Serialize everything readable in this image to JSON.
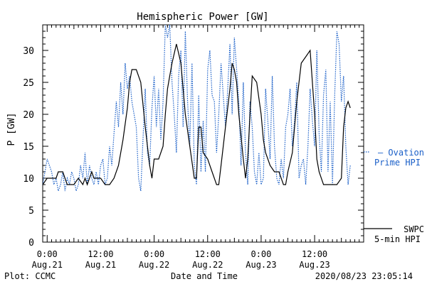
{
  "chart_data": {
    "type": "line",
    "title": "Hemispheric Power [GW]",
    "ylabel": "P [GW]",
    "xlabel": "Date and Time",
    "footer_left": "Plot: CCMC",
    "footer_right": "2020/08/23 23:05:14",
    "ylim": [
      0,
      34
    ],
    "xlim": [
      -1,
      71
    ],
    "yticks": [
      0,
      5,
      10,
      15,
      20,
      25,
      30
    ],
    "xticks": [
      {
        "x": 0,
        "label1": "0:00",
        "label2": "Aug.21"
      },
      {
        "x": 12,
        "label1": "12:00",
        "label2": "Aug.21"
      },
      {
        "x": 24,
        "label1": "0:00",
        "label2": "Aug.22"
      },
      {
        "x": 36,
        "label1": "12:00",
        "label2": "Aug.22"
      },
      {
        "x": 48,
        "label1": "0:00",
        "label2": "Aug.23"
      },
      {
        "x": 60,
        "label1": "12:00",
        "label2": "Aug.23"
      }
    ],
    "grid": false,
    "legend": [
      {
        "name": "— Ovation",
        "name2": "Prime HPI",
        "color": "#1a5fc8",
        "style": "dotted",
        "y": 14
      },
      {
        "name": "SWPC",
        "name2": "5-min HPI",
        "color": "#000000",
        "style": "solid",
        "y": 2
      }
    ],
    "series": [
      {
        "name": "SWPC 5-min HPI",
        "color": "#000000",
        "style": "solid",
        "x": [
          -1,
          0,
          1,
          2,
          2.5,
          3,
          3.5,
          4,
          4.5,
          5,
          6,
          7,
          8,
          8.5,
          9,
          10,
          10.5,
          11,
          11.5,
          12,
          13,
          14,
          15,
          16,
          17,
          18,
          18.5,
          19,
          20,
          21,
          22,
          23,
          23.5,
          24,
          25,
          26,
          26.5,
          27,
          27.5,
          28,
          29,
          30,
          31,
          32,
          33,
          33.5,
          34,
          34.5,
          35,
          36,
          37,
          38,
          38.5,
          39,
          40,
          41,
          41.5,
          42,
          42.5,
          43,
          44,
          44.5,
          45,
          45.5,
          46,
          47,
          48,
          48.5,
          49,
          50,
          51,
          52,
          53,
          53.5,
          54,
          55,
          56,
          57,
          58,
          59,
          60,
          60.5,
          61,
          62,
          63,
          64,
          65,
          66,
          66.5,
          67,
          67.5,
          68
        ],
        "y": [
          9,
          10,
          10,
          10,
          11,
          11,
          11,
          10,
          9,
          9,
          9,
          10,
          9,
          10,
          9,
          11,
          10,
          10,
          10,
          10,
          9,
          9,
          10,
          12,
          16,
          21,
          25,
          27,
          27,
          25,
          18,
          12,
          10,
          13,
          13,
          15,
          20,
          24,
          26,
          28,
          31,
          28,
          20,
          15,
          10,
          10,
          18,
          18,
          14,
          13,
          11,
          9,
          9,
          12,
          18,
          24,
          28,
          27,
          25,
          20,
          13,
          10,
          13,
          20,
          26,
          25,
          20,
          16,
          14,
          12,
          11,
          11,
          9,
          9,
          11,
          14,
          22,
          28,
          29,
          30,
          20,
          13,
          11,
          9,
          9,
          9,
          9,
          10,
          18,
          21,
          22,
          21
        ]
      },
      {
        "name": "Ovation Prime HPI",
        "color": "#1a5fc8",
        "style": "dotted",
        "x": [
          -1,
          0,
          1,
          1.5,
          2,
          2.5,
          3,
          3.5,
          4,
          4.5,
          5,
          5.5,
          6,
          6.5,
          7,
          7.5,
          8,
          8.5,
          9,
          9.5,
          10,
          10.5,
          11,
          11.5,
          12,
          12.5,
          13,
          13.5,
          14,
          14.5,
          15,
          15.5,
          16,
          16.5,
          17,
          17.5,
          18,
          18.5,
          19,
          19.5,
          20,
          20.5,
          21,
          21.5,
          22,
          22.5,
          23,
          23.5,
          24,
          24.5,
          25,
          25.5,
          26,
          26.5,
          27,
          27.5,
          28,
          28.5,
          29,
          29.5,
          30,
          30.5,
          31,
          31.5,
          32,
          32.5,
          33,
          33.5,
          34,
          34.5,
          35,
          35.5,
          36,
          36.5,
          37,
          37.5,
          38,
          38.5,
          39,
          39.5,
          40,
          40.5,
          41,
          41.5,
          42,
          42.5,
          43,
          43.5,
          44,
          44.5,
          45,
          45.5,
          46,
          46.5,
          47,
          47.5,
          48,
          48.5,
          49,
          49.5,
          50,
          50.5,
          51,
          51.5,
          52,
          52.5,
          53,
          53.5,
          54,
          54.5,
          55,
          55.5,
          56,
          56.5,
          57,
          57.5,
          58,
          58.5,
          59,
          59.5,
          60,
          60.5,
          61,
          61.5,
          62,
          62.5,
          63,
          63.5,
          64,
          64.5,
          65,
          65.5,
          66,
          66.5,
          67,
          67.5,
          68
        ],
        "y": [
          9,
          13,
          11,
          9,
          10,
          8,
          9,
          11,
          8,
          10,
          9,
          11,
          10,
          8,
          9,
          12,
          10,
          14,
          9,
          12,
          10,
          9,
          11,
          9,
          12,
          13,
          9,
          10,
          15,
          12,
          17,
          22,
          18,
          25,
          20,
          28,
          24,
          26,
          22,
          20,
          18,
          10,
          8,
          16,
          24,
          14,
          12,
          21,
          26,
          18,
          24,
          16,
          22,
          34,
          32,
          34,
          25,
          20,
          14,
          26,
          30,
          18,
          33,
          22,
          15,
          28,
          12,
          9,
          23,
          11,
          19,
          11,
          27,
          30,
          23,
          22,
          14,
          20,
          28,
          23,
          18,
          24,
          31,
          20,
          32,
          27,
          22,
          12,
          25,
          14,
          9,
          22,
          18,
          11,
          9,
          14,
          9,
          10,
          24,
          19,
          13,
          26,
          15,
          10,
          9,
          13,
          10,
          18,
          20,
          24,
          15,
          19,
          25,
          10,
          12,
          13,
          9,
          15,
          24,
          19,
          15,
          30,
          17,
          11,
          23,
          27,
          11,
          22,
          9,
          23,
          33,
          31,
          22,
          26,
          15,
          9,
          12
        ]
      }
    ]
  }
}
